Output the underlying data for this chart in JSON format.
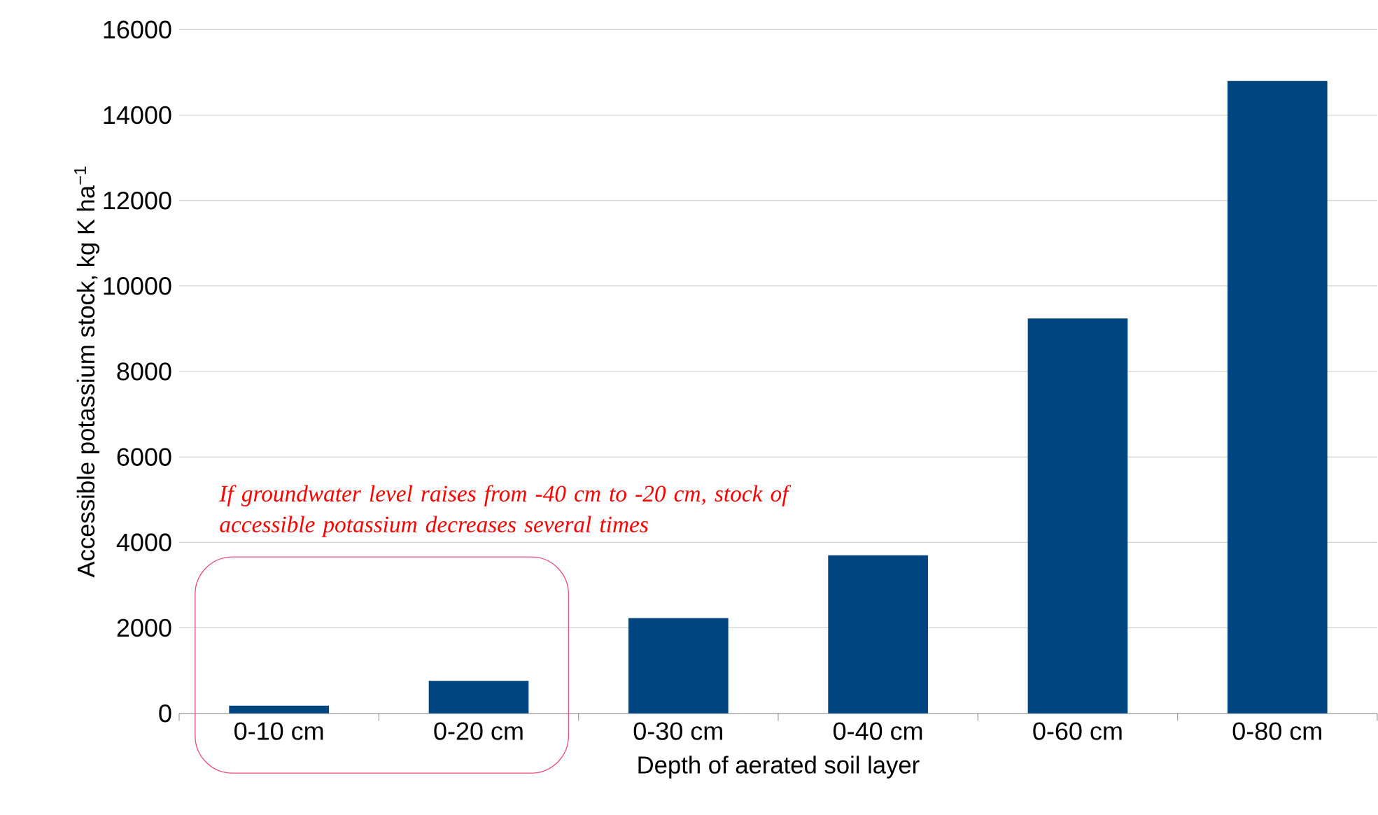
{
  "chart_data": {
    "type": "bar",
    "xlabel": "Depth of aerated soil layer",
    "ylabel": "Accessible potassium stock, kg K ha$^{−1}$",
    "categories": [
      "0-10 cm",
      "0-20 cm",
      "0-30 cm",
      "0-40 cm",
      "0-60 cm",
      "0-80 cm"
    ],
    "values": [
      180,
      760,
      2230,
      3700,
      9240,
      14800
    ],
    "color": "#00457f",
    "ylim": [
      0,
      16000
    ],
    "yticks": [
      0,
      2000,
      4000,
      6000,
      8000,
      10000,
      12000,
      14000,
      16000
    ],
    "grid": "y",
    "annotations": [
      "If groundwater level raises from -40 cm to -20 cm, stock of accessible potassium decreases several times"
    ]
  }
}
